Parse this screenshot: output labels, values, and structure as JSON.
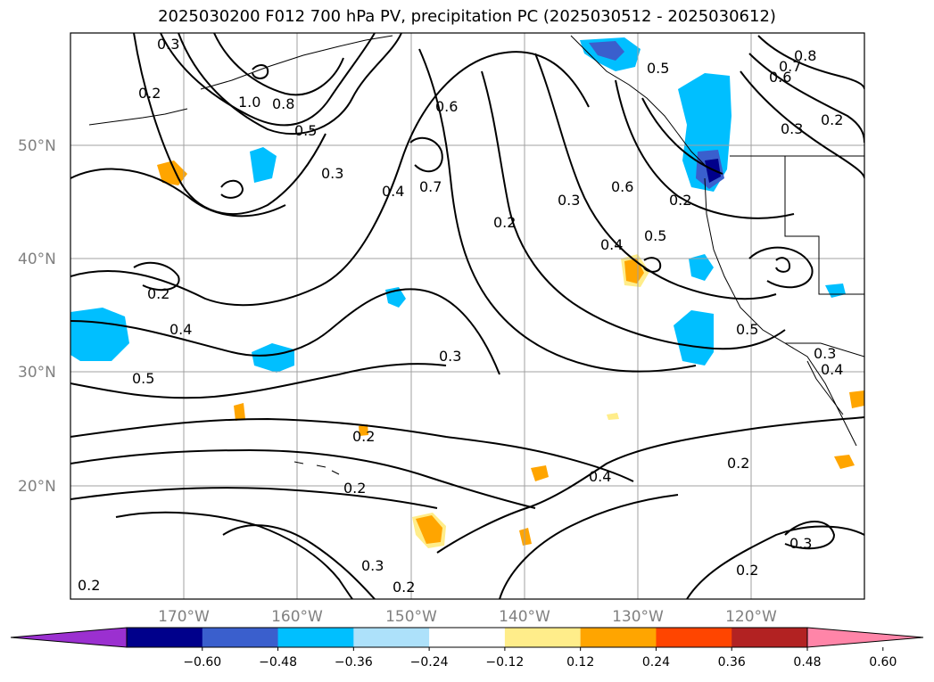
{
  "title": "2025030200 F012 700 hPa PV, precipitation PC (2025030512 - 2025030612)",
  "lat_labels": [
    "50°N",
    "40°N",
    "30°N",
    "20°N"
  ],
  "lon_labels": [
    "170°W",
    "160°W",
    "150°W",
    "140°W",
    "130°W",
    "120°W"
  ],
  "contour_labels": [
    "0.3",
    "0.2",
    "1.0",
    "0.8",
    "0.5",
    "0.3",
    "0.6",
    "0.7",
    "0.4",
    "0.2",
    "0.3",
    "0.6",
    "0.5",
    "0.7",
    "0.6",
    "0.8",
    "0.3",
    "0.2",
    "0.5",
    "0.4",
    "0.2",
    "0.4",
    "0.5",
    "0.3",
    "0.5",
    "0.3",
    "0.2",
    "0.2",
    "0.2",
    "0.4",
    "0.2",
    "0.3",
    "0.2",
    "0.3",
    "0.2",
    "0.4",
    "0.2"
  ],
  "colorbar": {
    "colors": [
      "#9b30d0",
      "#00008b",
      "#3a5fcd",
      "#00bfff",
      "#ade1fa",
      "#ffffff",
      "#ffed8a",
      "#ffa500",
      "#ff4500",
      "#b22222",
      "#ff85a8"
    ],
    "tick_labels": [
      "−0.60",
      "−0.48",
      "−0.36",
      "−0.24",
      "−0.12",
      "0.12",
      "0.24",
      "0.36",
      "0.48",
      "0.60"
    ]
  },
  "colors": {
    "neg_light": "#ade1fa",
    "neg_mid": "#00bfff",
    "neg_strong": "#3a5fcd",
    "neg_deep": "#00008b",
    "pos_light": "#ffed8a",
    "pos_mid": "#ffa500"
  }
}
